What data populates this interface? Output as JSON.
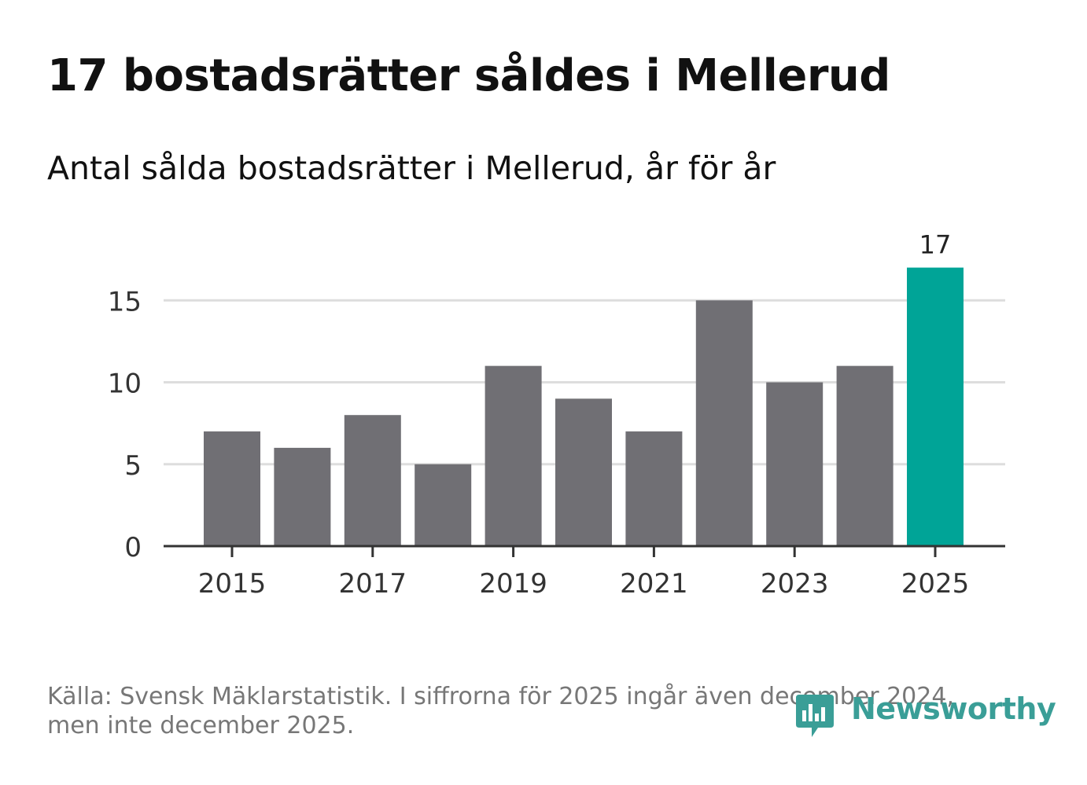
{
  "title": "17 bostadsrätter såldes i Mellerud",
  "subtitle": "Antal sålda bostadsrätter i Mellerud, år för år",
  "footer": {
    "line1": "Källa: Svensk Mäklarstatistik. I siffrorna för 2025 ingår även december 2024,",
    "line2": "men inte december 2025."
  },
  "brand": {
    "name": "Newsworthy",
    "icon": "newsworthy-logo-icon",
    "color": "#3a9e97"
  },
  "colors": {
    "bar": "#706f74",
    "highlight": "#00a497",
    "grid": "#dddddd",
    "axis": "#333333"
  },
  "chart_data": {
    "type": "bar",
    "title": "17 bostadsrätter såldes i Mellerud",
    "subtitle": "Antal sålda bostadsrätter i Mellerud, år för år",
    "categories": [
      "2015",
      "2016",
      "2017",
      "2018",
      "2019",
      "2020",
      "2021",
      "2022",
      "2023",
      "2024",
      "2025"
    ],
    "values": [
      7,
      6,
      8,
      5,
      11,
      9,
      7,
      15,
      10,
      11,
      17
    ],
    "highlight_index": 10,
    "data_labels": [
      {
        "index": 10,
        "text": "17"
      }
    ],
    "x_tick_labels": [
      "2015",
      "2017",
      "2019",
      "2021",
      "2023",
      "2025"
    ],
    "y_ticks": [
      0,
      5,
      10,
      15
    ],
    "ylim": [
      0,
      17
    ],
    "xlabel": "",
    "ylabel": "",
    "grid": true
  }
}
